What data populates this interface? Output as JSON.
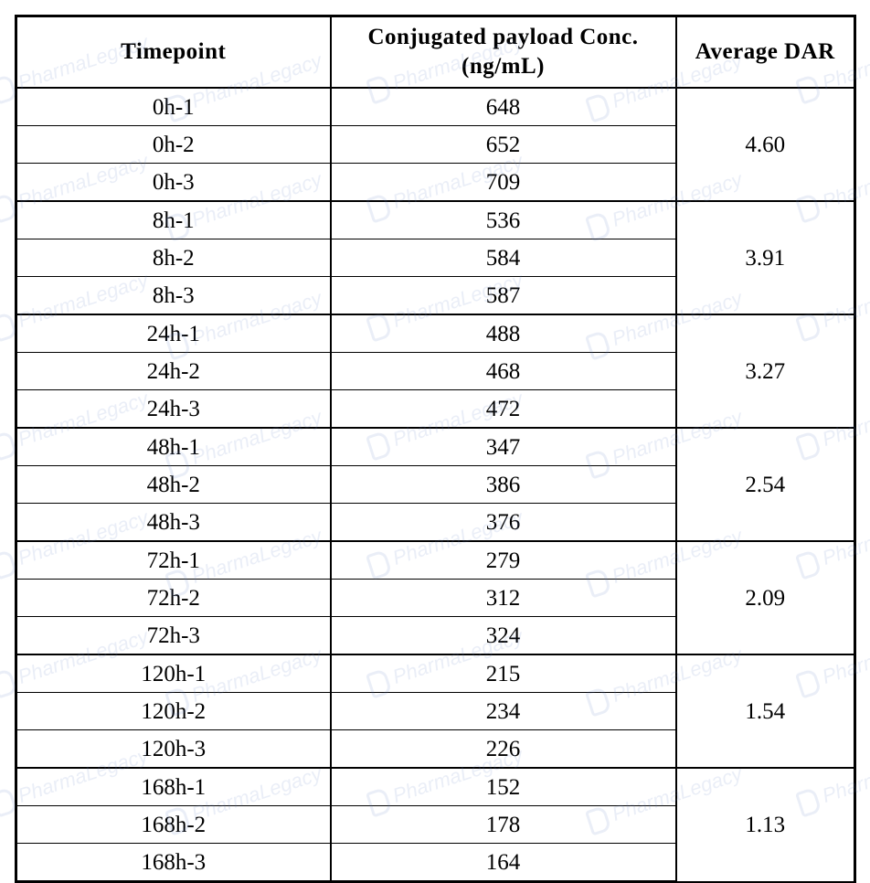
{
  "watermark": "PharmaLegacy",
  "table": {
    "headers": {
      "timepoint": "Timepoint",
      "conc": "Conjugated payload Conc. (ng/mL)",
      "dar": "Average DAR"
    },
    "groups": [
      {
        "dar": "4.60",
        "rows": [
          {
            "timepoint": "0h-1",
            "conc": "648"
          },
          {
            "timepoint": "0h-2",
            "conc": "652"
          },
          {
            "timepoint": "0h-3",
            "conc": "709"
          }
        ]
      },
      {
        "dar": "3.91",
        "rows": [
          {
            "timepoint": "8h-1",
            "conc": "536"
          },
          {
            "timepoint": "8h-2",
            "conc": "584"
          },
          {
            "timepoint": "8h-3",
            "conc": "587"
          }
        ]
      },
      {
        "dar": "3.27",
        "rows": [
          {
            "timepoint": "24h-1",
            "conc": "488"
          },
          {
            "timepoint": "24h-2",
            "conc": "468"
          },
          {
            "timepoint": "24h-3",
            "conc": "472"
          }
        ]
      },
      {
        "dar": "2.54",
        "rows": [
          {
            "timepoint": "48h-1",
            "conc": "347"
          },
          {
            "timepoint": "48h-2",
            "conc": "386"
          },
          {
            "timepoint": "48h-3",
            "conc": "376"
          }
        ]
      },
      {
        "dar": "2.09",
        "rows": [
          {
            "timepoint": "72h-1",
            "conc": "279"
          },
          {
            "timepoint": "72h-2",
            "conc": "312"
          },
          {
            "timepoint": "72h-3",
            "conc": "324"
          }
        ]
      },
      {
        "dar": "1.54",
        "rows": [
          {
            "timepoint": "120h-1",
            "conc": "215"
          },
          {
            "timepoint": "120h-2",
            "conc": "234"
          },
          {
            "timepoint": "120h-3",
            "conc": "226"
          }
        ]
      },
      {
        "dar": "1.13",
        "rows": [
          {
            "timepoint": "168h-1",
            "conc": "152"
          },
          {
            "timepoint": "168h-2",
            "conc": "178"
          },
          {
            "timepoint": "168h-3",
            "conc": "164"
          }
        ]
      }
    ]
  }
}
